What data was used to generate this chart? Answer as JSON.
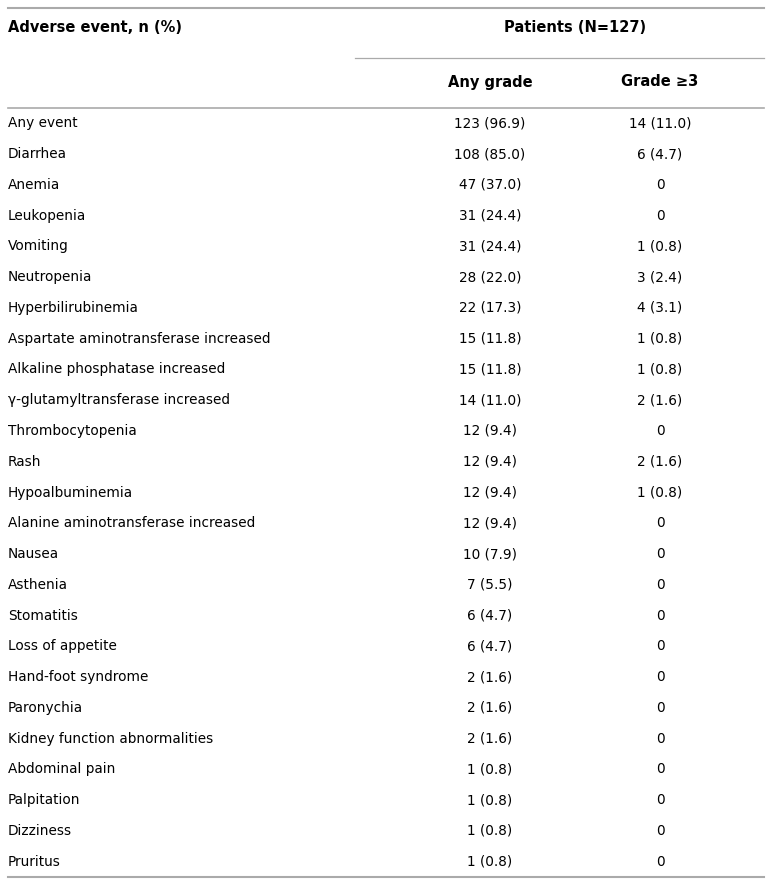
{
  "col1_header": "Adverse event, n (%)",
  "col2_header": "Patients (N=127)",
  "col2_sub1": "Any grade",
  "col2_sub2": "Grade ≥3",
  "rows": [
    [
      "Any event",
      "123 (96.9)",
      "14 (11.0)"
    ],
    [
      "Diarrhea",
      "108 (85.0)",
      "6 (4.7)"
    ],
    [
      "Anemia",
      "47 (37.0)",
      "0"
    ],
    [
      "Leukopenia",
      "31 (24.4)",
      "0"
    ],
    [
      "Vomiting",
      "31 (24.4)",
      "1 (0.8)"
    ],
    [
      "Neutropenia",
      "28 (22.0)",
      "3 (2.4)"
    ],
    [
      "Hyperbilirubinemia",
      "22 (17.3)",
      "4 (3.1)"
    ],
    [
      "Aspartate aminotransferase increased",
      "15 (11.8)",
      "1 (0.8)"
    ],
    [
      "Alkaline phosphatase increased",
      "15 (11.8)",
      "1 (0.8)"
    ],
    [
      "γ-glutamyltransferase increased",
      "14 (11.0)",
      "2 (1.6)"
    ],
    [
      "Thrombocytopenia",
      "12 (9.4)",
      "0"
    ],
    [
      "Rash",
      "12 (9.4)",
      "2 (1.6)"
    ],
    [
      "Hypoalbuminemia",
      "12 (9.4)",
      "1 (0.8)"
    ],
    [
      "Alanine aminotransferase increased",
      "12 (9.4)",
      "0"
    ],
    [
      "Nausea",
      "10 (7.9)",
      "0"
    ],
    [
      "Asthenia",
      "7 (5.5)",
      "0"
    ],
    [
      "Stomatitis",
      "6 (4.7)",
      "0"
    ],
    [
      "Loss of appetite",
      "6 (4.7)",
      "0"
    ],
    [
      "Hand-foot syndrome",
      "2 (1.6)",
      "0"
    ],
    [
      "Paronychia",
      "2 (1.6)",
      "0"
    ],
    [
      "Kidney function abnormalities",
      "2 (1.6)",
      "0"
    ],
    [
      "Abdominal pain",
      "1 (0.8)",
      "0"
    ],
    [
      "Palpitation",
      "1 (0.8)",
      "0"
    ],
    [
      "Dizziness",
      "1 (0.8)",
      "0"
    ],
    [
      "Pruritus",
      "1 (0.8)",
      "0"
    ]
  ],
  "bg_color": "#ffffff",
  "text_color": "#000000",
  "line_color": "#aaaaaa",
  "header_fontsize": 10.5,
  "body_fontsize": 9.8,
  "fig_width": 7.72,
  "fig_height": 8.85,
  "dpi": 100
}
